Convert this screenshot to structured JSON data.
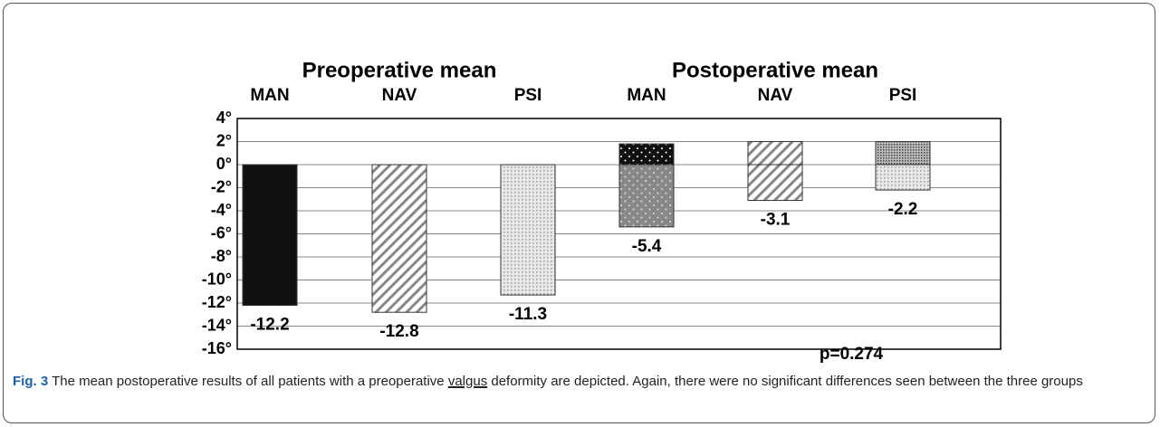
{
  "chart_data": {
    "type": "bar",
    "groups": [
      {
        "title": "Preoperative mean",
        "categories": [
          "MAN",
          "NAV",
          "PSI"
        ],
        "values": [
          -12.2,
          -12.8,
          -11.3
        ]
      },
      {
        "title": "Postoperative mean",
        "categories": [
          "MAN",
          "NAV",
          "PSI"
        ],
        "values": [
          -5.4,
          -3.1,
          -2.2
        ],
        "upper_values": [
          1.8,
          2,
          2
        ]
      }
    ],
    "ylim": [
      -16,
      4
    ],
    "yticks": [
      {
        "value": 4,
        "label": "4°"
      },
      {
        "value": 2,
        "label": "2°"
      },
      {
        "value": 0,
        "label": "0°"
      },
      {
        "value": -2,
        "label": "-2°"
      },
      {
        "value": -4,
        "label": "-4°"
      },
      {
        "value": -6,
        "label": "-6°"
      },
      {
        "value": -8,
        "label": "-8°"
      },
      {
        "value": -10,
        "label": "-10°"
      },
      {
        "value": -12,
        "label": "-12°"
      },
      {
        "value": -14,
        "label": "-14°"
      },
      {
        "value": -16,
        "label": "-16°"
      }
    ],
    "grid": true,
    "annotation": "p=0.274"
  },
  "caption": {
    "label": "Fig. 3",
    "before": "The mean postoperative results of all patients with a preoperative",
    "link": "valgus",
    "after": "deformity are depicted. Again, there were no significant differences seen between the three groups"
  }
}
